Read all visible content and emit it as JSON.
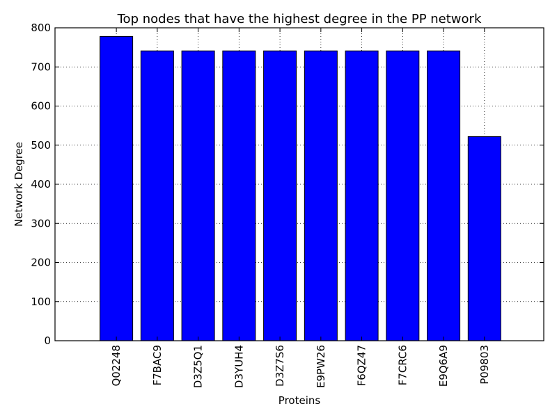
{
  "chart_data": {
    "type": "bar",
    "title": "Top nodes that have the highest degree in the PP network",
    "xlabel": "Proteins",
    "ylabel": "Network Degree",
    "categories": [
      "Q02248",
      "F7BAC9",
      "D3Z5Q1",
      "D3YUH4",
      "D3Z7S6",
      "E9PW26",
      "F6QZ47",
      "F7CRC6",
      "E9Q6A9",
      "P09803"
    ],
    "values": [
      778,
      741,
      741,
      741,
      741,
      741,
      741,
      741,
      741,
      522
    ],
    "ylim": [
      0,
      800
    ],
    "yticks": [
      0,
      100,
      200,
      300,
      400,
      500,
      600,
      700,
      800
    ],
    "grid": true,
    "bar_color": "#0000ff"
  }
}
